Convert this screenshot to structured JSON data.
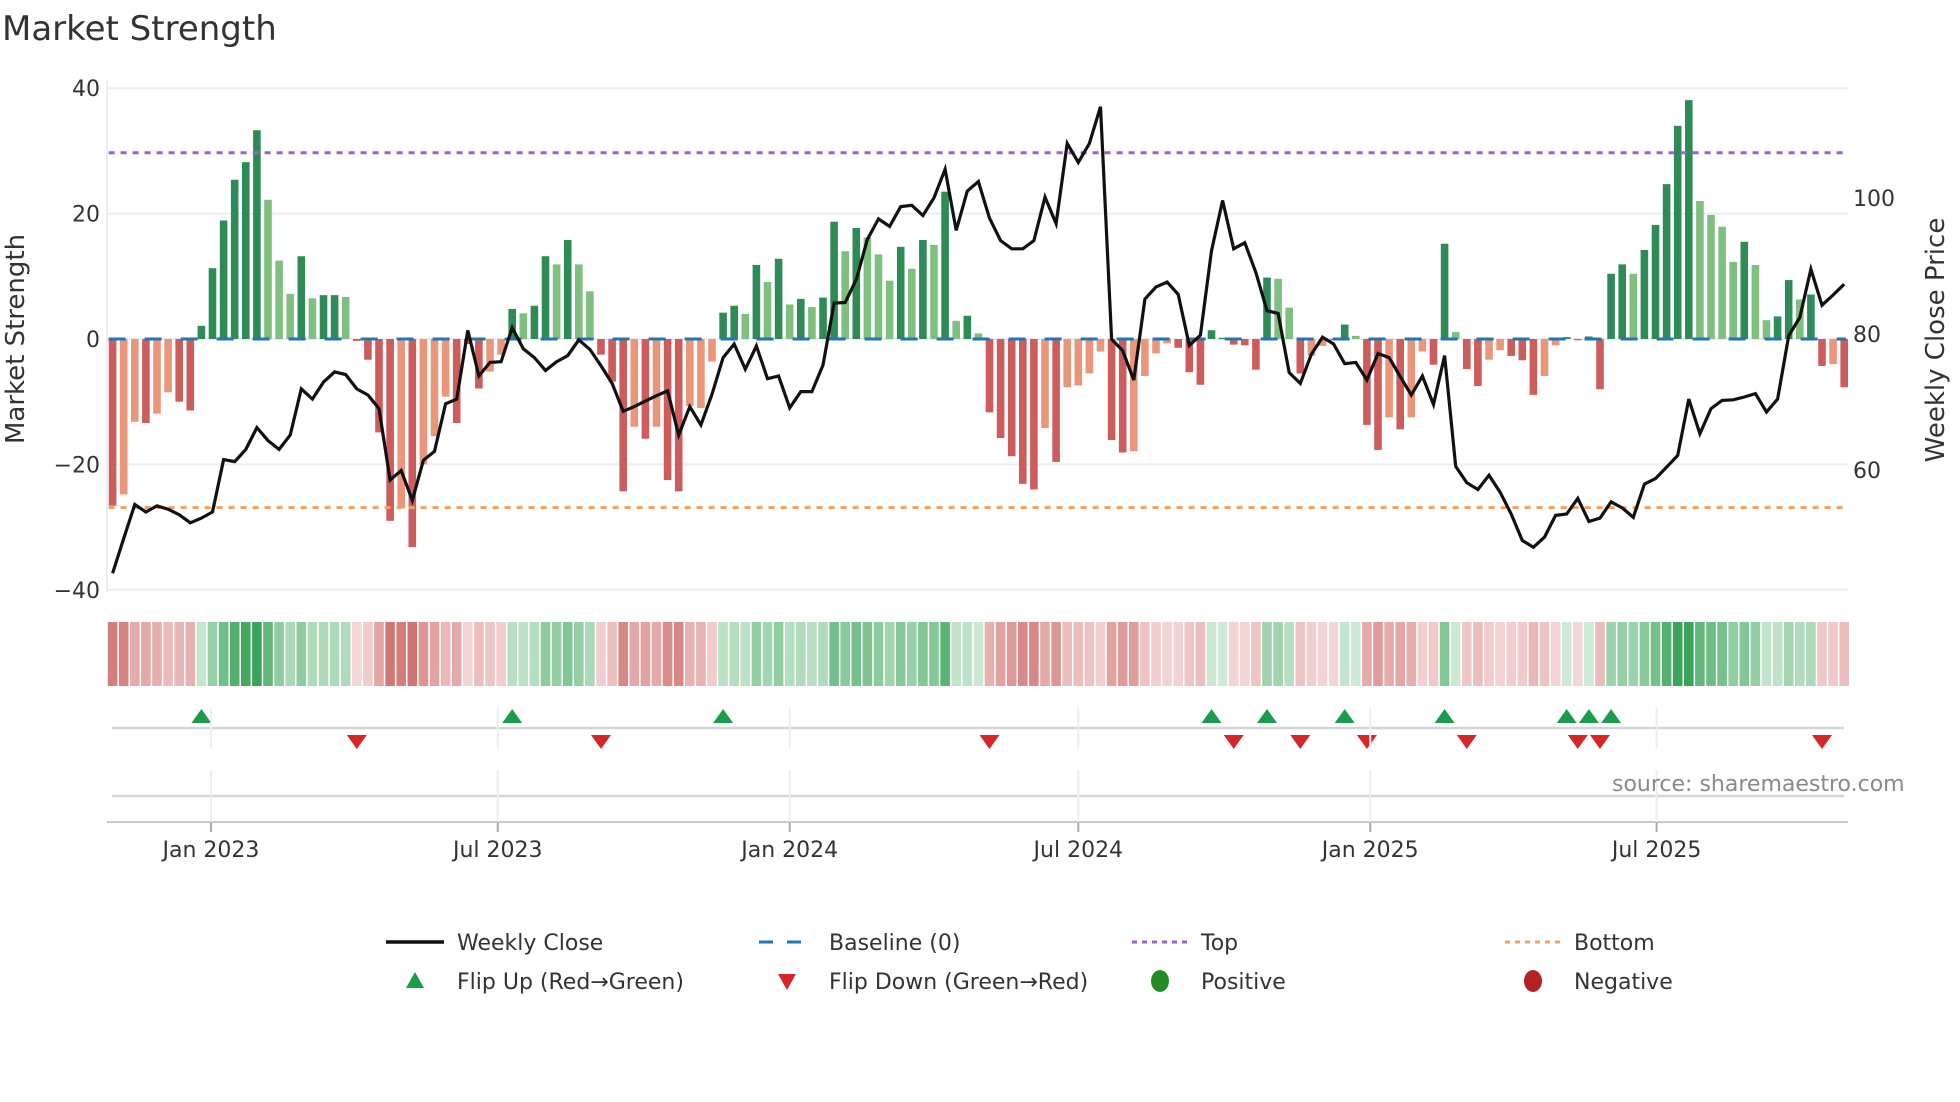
{
  "chart_data": {
    "type": "bar",
    "title": "Market Strength",
    "ylabel": "Market Strength",
    "y2label": "Weekly Close Price",
    "ylim": [
      -40,
      40
    ],
    "y2lim": [
      42.3,
      116.1
    ],
    "yticks": [
      "40",
      "20",
      "0",
      "−20",
      "−40"
    ],
    "ytick_values": [
      40,
      20,
      0,
      -20,
      -40
    ],
    "y2ticks": [
      "100",
      "80",
      "60"
    ],
    "y2tick_values": [
      100,
      80,
      60
    ],
    "xticks": [
      "Jan 2023",
      "Jul 2023",
      "Jan 2024",
      "Jul 2024",
      "Jan 2025",
      "Jul 2025"
    ],
    "xtick_week_index": [
      9.86,
      35.7,
      62,
      88,
      114.3,
      140.1
    ],
    "top_level": 29.7,
    "bottom_level": -26.9,
    "baseline": 0,
    "strength": [
      -26.6,
      -24.8,
      -13.2,
      -13.4,
      -11.9,
      -8.5,
      -10,
      -11.4,
      2.1,
      11.3,
      18.9,
      25.4,
      28.2,
      33.3,
      22.2,
      12.5,
      7.2,
      13.2,
      6.5,
      7,
      7,
      6.7,
      -0.3,
      -3.3,
      -14.9,
      -29,
      -27,
      -33.2,
      -20,
      -15.5,
      -9.2,
      -13.4,
      -0.8,
      -7.9,
      -5.2,
      -2.5,
      4.8,
      4.1,
      5.3,
      13.2,
      11.9,
      15.8,
      11.9,
      7.6,
      -2.5,
      -6.8,
      -24.3,
      -14,
      -15.9,
      -14,
      -22.5,
      -24.3,
      -10.7,
      -11,
      -3.6,
      4.2,
      5.3,
      4,
      11.8,
      9.1,
      12.8,
      5.5,
      6.4,
      5.1,
      6.6,
      18.7,
      14,
      17.7,
      16.2,
      13.5,
      9.3,
      14.7,
      11.2,
      15.8,
      15,
      23.5,
      2.9,
      3.7,
      0.9,
      -11.7,
      -15.8,
      -18.7,
      -23.1,
      -24,
      -14.2,
      -19.6,
      -7.7,
      -7.4,
      -5.5,
      -2,
      -16.1,
      -18.1,
      -17.9,
      -5.9,
      -2.3,
      -0.7,
      -1.4,
      -5.3,
      -7.3,
      1.4,
      0.2,
      -0.9,
      -1,
      -4.9,
      9.8,
      9.6,
      5,
      -5.5,
      -2.7,
      -1.1,
      -0.2,
      2.3,
      0.5,
      -13.7,
      -17.7,
      -12.5,
      -14.4,
      -12.5,
      -2,
      -4.1,
      15.2,
      1.1,
      -4.8,
      -7.5,
      -3.3,
      -1.8,
      -2.7,
      -3.4,
      -8.9,
      -5.9,
      -1,
      0.3,
      -0.2,
      0.4,
      -8,
      10.4,
      11.9,
      10.4,
      14.2,
      18.2,
      24.7,
      34,
      38.1,
      22,
      19.8,
      17.9,
      12.3,
      15.5,
      11.8,
      3,
      3.6,
      9.4,
      6.3,
      7.1,
      -4.3,
      -4,
      -7.7
    ],
    "strength_shade_dark": [
      1,
      0,
      0,
      1,
      0,
      0,
      1,
      1,
      1,
      1,
      1,
      1,
      1,
      1,
      0,
      0,
      0,
      1,
      0,
      1,
      1,
      0,
      1,
      1,
      1,
      1,
      0,
      1,
      0,
      0,
      0,
      1,
      1,
      1,
      0,
      0,
      1,
      0,
      1,
      1,
      0,
      1,
      0,
      0,
      1,
      1,
      1,
      0,
      1,
      0,
      1,
      1,
      0,
      0,
      0,
      1,
      1,
      0,
      1,
      0,
      1,
      0,
      1,
      0,
      1,
      1,
      0,
      1,
      0,
      0,
      0,
      1,
      0,
      1,
      0,
      1,
      0,
      1,
      0,
      1,
      1,
      1,
      1,
      1,
      0,
      1,
      0,
      0,
      0,
      0,
      1,
      1,
      0,
      0,
      0,
      0,
      1,
      1,
      1,
      1,
      1,
      1,
      1,
      1,
      1,
      0,
      0,
      1,
      0,
      0,
      1,
      1,
      0,
      1,
      1,
      0,
      1,
      0,
      0,
      1,
      1,
      0,
      1,
      1,
      0,
      0,
      1,
      1,
      1,
      0,
      0,
      1,
      1,
      1,
      1,
      1,
      1,
      0,
      1,
      1,
      1,
      1,
      1,
      0,
      0,
      0,
      0,
      1,
      0,
      0,
      1,
      1,
      0,
      1,
      1,
      0,
      1
    ],
    "weekly_close": [
      44.8,
      49.9,
      54.9,
      53.8,
      54.7,
      54.2,
      53.4,
      52.2,
      52.9,
      53.8,
      61.5,
      61.2,
      63,
      66.2,
      64.3,
      63,
      65.1,
      71.9,
      70.4,
      72.9,
      74.4,
      74,
      71.9,
      71,
      69,
      58.5,
      59.9,
      55.5,
      61.4,
      62.7,
      69.7,
      70.4,
      80.5,
      73.8,
      75.8,
      75.9,
      80.9,
      77.8,
      76.5,
      74.6,
      75.9,
      76.8,
      79.1,
      77.7,
      75.3,
      72.7,
      68.6,
      69.3,
      70.1,
      70.9,
      71.6,
      65.1,
      69.3,
      66.6,
      71.1,
      76.5,
      78.5,
      74.8,
      78.2,
      73.4,
      73.8,
      69.1,
      71.5,
      71.5,
      75.4,
      84.5,
      84.6,
      88,
      93.9,
      96.9,
      95.8,
      98.7,
      98.9,
      97.4,
      100,
      104.2,
      95.2,
      101,
      102.4,
      97,
      93.7,
      92.5,
      92.5,
      93.7,
      100.1,
      96.2,
      108,
      105.2,
      108,
      113.4,
      79.2,
      77.5,
      73.2,
      85.1,
      86.9,
      87.6,
      85.8,
      78.3,
      79.8,
      92.2,
      99.6,
      92.5,
      93.4,
      89,
      83.4,
      83,
      74.3,
      72.7,
      77,
      79.5,
      78.5,
      75.6,
      75.8,
      73.2,
      77.1,
      76.5,
      73.7,
      71,
      73.8,
      69.6,
      76.8,
      60.5,
      58.1,
      57.1,
      59.2,
      56.7,
      53.5,
      49.6,
      48.6,
      50.1,
      53.3,
      53.5,
      55.8,
      52.4,
      52.9,
      55.3,
      54.4,
      53,
      57.9,
      58.7,
      60.4,
      62.1,
      70.4,
      65.3,
      69,
      70.2,
      70.3,
      70.7,
      71.2,
      68.5,
      70.4,
      79.7,
      82.4,
      89.5,
      84.2,
      85.7,
      87.3
    ],
    "flip_up_weeks": [
      9,
      37,
      56,
      100,
      105,
      112,
      121,
      132,
      134,
      136
    ],
    "flip_down_weeks": [
      23,
      45,
      80,
      102,
      108,
      114,
      123,
      133,
      135,
      155
    ],
    "legend": [
      {
        "label": "Weekly Close",
        "kind": "line"
      },
      {
        "label": "Baseline (0)",
        "kind": "dash"
      },
      {
        "label": "Top",
        "kind": "dot"
      },
      {
        "label": "Bottom",
        "kind": "dot"
      },
      {
        "label": "Flip Up (Red→Green)",
        "kind": "triangle-up"
      },
      {
        "label": "Flip Down (Green→Red)",
        "kind": "triangle-down"
      },
      {
        "label": "Positive",
        "kind": "circle"
      },
      {
        "label": "Negative",
        "kind": "circle"
      }
    ],
    "legend_placement": "bottom",
    "grid": true,
    "source": "source: sharemaestro.com"
  },
  "colors": {
    "pos_dark": "#2e8b57",
    "pos_light": "#7fbf7f",
    "neg_dark": "#cd5c5c",
    "neg_light": "#e9967a",
    "close": "#111111",
    "baseline": "#1f77b4",
    "top": "#9b5fd6",
    "bottom": "#f0a060",
    "flip_up": "#1a9c4a",
    "flip_down": "#d62728",
    "positive": "#228b22",
    "negative": "#b22222"
  }
}
